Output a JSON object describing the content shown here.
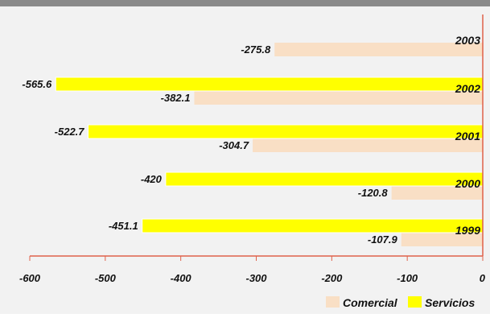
{
  "chart_data": {
    "type": "bar",
    "orientation": "horizontal",
    "categories": [
      "2003",
      "2002",
      "2001",
      "2000",
      "1999"
    ],
    "series": [
      {
        "name": "Servicios",
        "values": [
          null,
          -565.6,
          -522.7,
          -420,
          -451.1
        ]
      },
      {
        "name": "Comercial",
        "values": [
          -275.8,
          -382.1,
          -304.7,
          -120.8,
          -107.9
        ]
      }
    ],
    "xlim": [
      -600,
      0
    ],
    "x_ticks": [
      "-600",
      "-500",
      "-400",
      "-300",
      "-200",
      "-100",
      "0"
    ],
    "grid": false,
    "legend_position": "bottom-right",
    "colors": {
      "background": "#F2F2F2",
      "Comercial": "#F9DFC5",
      "Servicios": "#FFFF00",
      "axis": "#E0614A",
      "top_rule": "#8A8A8A"
    }
  }
}
